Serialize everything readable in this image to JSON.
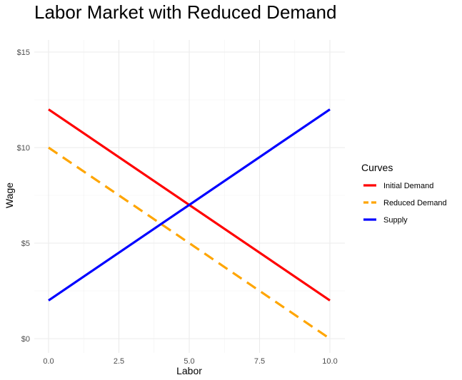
{
  "chart_data": {
    "type": "line",
    "title": "Labor Market with Reduced Demand",
    "xlabel": "Labor",
    "ylabel": "Wage",
    "xlim": [
      0,
      10
    ],
    "ylim": [
      0,
      15
    ],
    "x_ticks": [
      0,
      2.5,
      5,
      7.5,
      10
    ],
    "x_tick_labels": [
      "0.0",
      "2.5",
      "5.0",
      "7.5",
      "10.0"
    ],
    "y_ticks": [
      0,
      5,
      10,
      15
    ],
    "y_tick_labels": [
      "$0",
      "$5",
      "$10",
      "$15"
    ],
    "grid": true,
    "legend": {
      "title": "Curves",
      "position": "right"
    },
    "series": [
      {
        "name": "Initial Demand",
        "color": "#ff0000",
        "dash": "solid",
        "x": [
          0,
          10
        ],
        "y": [
          12,
          2
        ]
      },
      {
        "name": "Reduced Demand",
        "color": "#ffa500",
        "dash": "dashed",
        "x": [
          0,
          10
        ],
        "y": [
          10,
          0
        ]
      },
      {
        "name": "Supply",
        "color": "#0000ff",
        "dash": "solid",
        "x": [
          0,
          10
        ],
        "y": [
          2,
          12
        ]
      }
    ]
  }
}
